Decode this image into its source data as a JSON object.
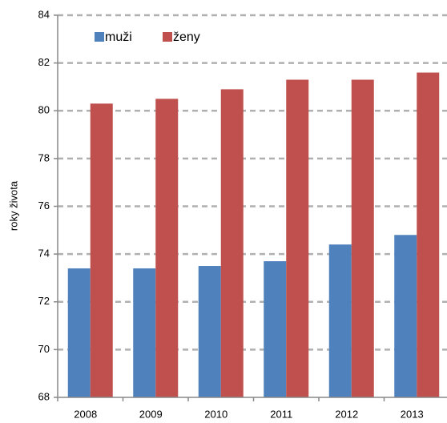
{
  "chart_data": {
    "type": "bar",
    "y_label": "roky života",
    "categories": [
      "2008",
      "2009",
      "2010",
      "2011",
      "2012",
      "2013"
    ],
    "series": [
      {
        "name": "muži",
        "color": "#4f81bd",
        "values": [
          73.4,
          73.4,
          73.5,
          73.7,
          74.4,
          74.8
        ]
      },
      {
        "name": "ženy",
        "color": "#c0504d",
        "values": [
          80.3,
          80.5,
          80.9,
          81.3,
          81.3,
          81.6
        ]
      }
    ],
    "ylim": [
      68,
      84
    ],
    "yticks": [
      68,
      70,
      72,
      74,
      76,
      78,
      80,
      82,
      84
    ],
    "grid": true,
    "legend": "top-left"
  }
}
